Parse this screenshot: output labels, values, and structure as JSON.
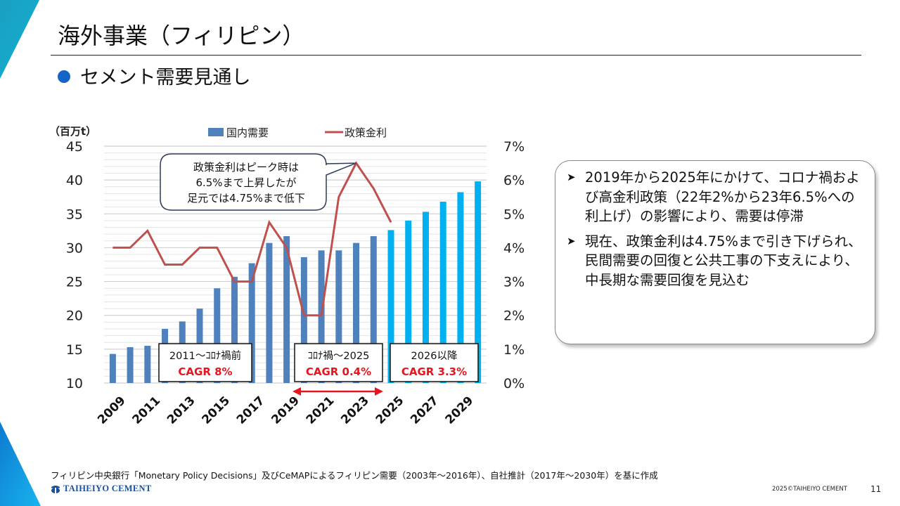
{
  "page": {
    "title": "海外事業（フィリピン）",
    "subtitle": "セメント需要見通し",
    "accent_color": "#1565c8"
  },
  "chart_data": {
    "type": "bar+line",
    "title": "",
    "y_left_label": "（百万t）",
    "y_left_ticks": [
      "45",
      "40",
      "35",
      "30",
      "25",
      "20",
      "15",
      "10"
    ],
    "y_left_range": [
      10,
      45
    ],
    "y_right_ticks": [
      "7%",
      "6%",
      "5%",
      "4%",
      "3%",
      "2%",
      "1%",
      "0%"
    ],
    "y_right_range": [
      0,
      7
    ],
    "categories": [
      2009,
      2010,
      2011,
      2012,
      2013,
      2014,
      2015,
      2016,
      2017,
      2018,
      2019,
      2020,
      2021,
      2022,
      2023,
      2024,
      2025,
      2026,
      2027,
      2028,
      2029,
      2030
    ],
    "x_tick_labels": [
      "2009",
      "2011",
      "2013",
      "2015",
      "2017",
      "2019",
      "2021",
      "2023",
      "2025",
      "2027",
      "2029"
    ],
    "legend": [
      {
        "name": "国内需要",
        "type": "bar",
        "color": "#4f81bd"
      },
      {
        "name": "政策金利",
        "type": "line",
        "color": "#c0504d"
      }
    ],
    "legend_position": "top",
    "series": [
      {
        "name": "国内需要",
        "axis": "left",
        "unit": "百万t",
        "values": [
          14.3,
          15.3,
          15.5,
          18.0,
          19.1,
          21.0,
          24.0,
          25.7,
          27.7,
          30.7,
          31.7,
          28.6,
          29.6,
          29.6,
          30.7,
          31.7,
          32.6,
          34.0,
          35.3,
          36.8,
          38.2,
          39.8
        ],
        "actual_color": "#4f81bd",
        "forecast_color": "#00b0f0",
        "forecast_from": 2025
      },
      {
        "name": "政策金利",
        "axis": "right",
        "unit": "%",
        "x": [
          2009,
          2010,
          2011,
          2012,
          2013,
          2014,
          2015,
          2016,
          2017,
          2018,
          2019,
          2020,
          2021,
          2022,
          2023,
          2024,
          2025
        ],
        "values": [
          4.0,
          4.0,
          4.5,
          3.5,
          3.5,
          4.0,
          4.0,
          3.0,
          3.0,
          4.75,
          4.0,
          2.0,
          2.0,
          5.5,
          6.5,
          5.75,
          4.75
        ]
      }
    ],
    "grid": true,
    "callout": {
      "lines": [
        "政策金利はピーク時は",
        "6.5%まで上昇したが",
        "足元では4.75%まで低下"
      ],
      "points_to": 2023
    },
    "annotations": [
      {
        "label": "2011～ｺﾛﾅ禍前",
        "value": "CAGR 8%"
      },
      {
        "label": "ｺﾛﾅ禍～2025",
        "value": "CAGR 0.4%"
      },
      {
        "label": "2026以降",
        "value": "CAGR 3.3%"
      }
    ],
    "range_arrow": {
      "from": 2020,
      "to": 2024,
      "color": "#e8141e"
    },
    "cagr_color": "#e8141e"
  },
  "notes": [
    "2019年から2025年にかけて、コロナ禍および高金利政策（22年2%から23年6.5%への利上げ）の影響により、需要は停滞",
    "現在、政策金利は4.75%まで引き下げられ、民間需要の回復と公共工事の下支えにより、中長期な需要回復を見込む"
  ],
  "footer": {
    "source": "フィリピン中央銀行「Monetary Policy Decisions」及びCeMAPによるフィリピン需要（2003年～2016年）、自社推計（2017年～2030年）を基に作成",
    "logo_text": "TAIHEIYO CEMENT",
    "copyright": "2025©TAIHEIYO CEMENT",
    "page_number": "11"
  }
}
